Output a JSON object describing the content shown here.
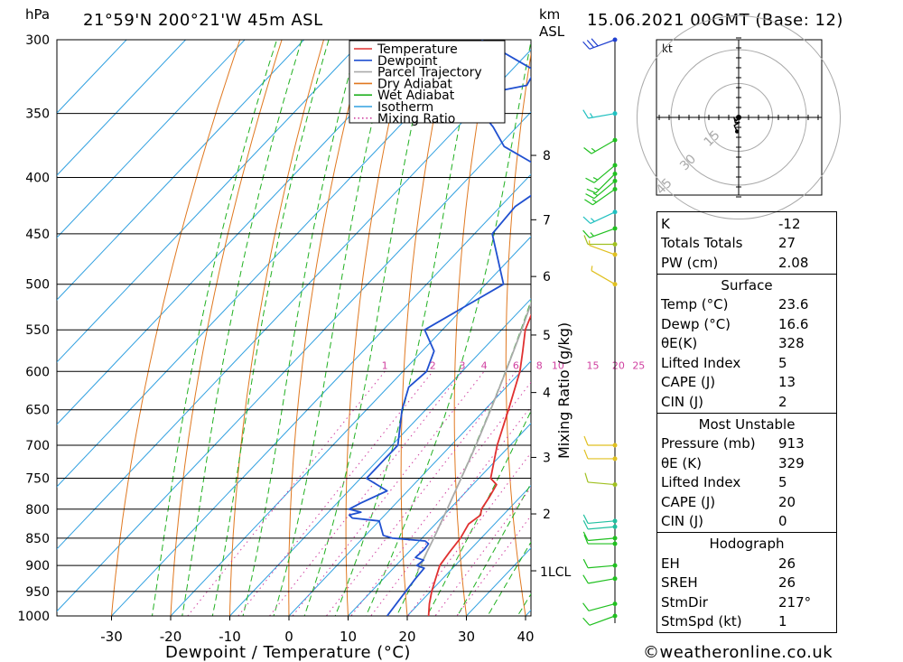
{
  "header": {
    "hpa_label": "hPa",
    "location": "21°59'N  200°21'W  45m  ASL",
    "km_label": "km",
    "asl_label": "ASL",
    "datetime": "15.06.2021  00GMT  (Base: 12)"
  },
  "chart_data": {
    "type": "skew-t",
    "xlabel": "Dewpoint / Temperature (°C)",
    "ylabel_right": "Mixing Ratio (g/kg)",
    "y_unit": "hPa",
    "pressure_levels": [
      300,
      350,
      400,
      450,
      500,
      550,
      600,
      650,
      700,
      750,
      800,
      850,
      900,
      950,
      1000
    ],
    "x_ticks": [
      -30,
      -20,
      -10,
      0,
      10,
      20,
      30,
      40
    ],
    "height_km_ticks": [
      {
        "label": "8",
        "p": 382
      },
      {
        "label": "7",
        "p": 437
      },
      {
        "label": "6",
        "p": 492
      },
      {
        "label": "5",
        "p": 556
      },
      {
        "label": "4",
        "p": 627
      },
      {
        "label": "3",
        "p": 718
      },
      {
        "label": "2",
        "p": 808
      }
    ],
    "lcl": {
      "label": "1LCL",
      "p": 910
    },
    "mixing_ratio_labels": [
      "1",
      "2",
      "3",
      "4",
      "6",
      "8",
      "10",
      "15",
      "20",
      "25"
    ],
    "legend": [
      {
        "name": "Temperature",
        "color": "#e03030",
        "style": "solid"
      },
      {
        "name": "Dewpoint",
        "color": "#2050d0",
        "style": "solid"
      },
      {
        "name": "Parcel Trajectory",
        "color": "#aaaaaa",
        "style": "solid"
      },
      {
        "name": "Dry Adiabat",
        "color": "#e07820",
        "style": "solid"
      },
      {
        "name": "Wet Adiabat",
        "color": "#20b020",
        "style": "solid"
      },
      {
        "name": "Isotherm",
        "color": "#30a0e0",
        "style": "solid"
      },
      {
        "name": "Mixing Ratio",
        "color": "#d040a0",
        "style": "dotted"
      }
    ],
    "series": [
      {
        "name": "Temperature",
        "points": [
          [
            1000,
            23.6
          ],
          [
            975,
            21.8
          ],
          [
            950,
            20.2
          ],
          [
            925,
            18.8
          ],
          [
            900,
            17.4
          ],
          [
            875,
            16.9
          ],
          [
            850,
            16.5
          ],
          [
            825,
            15.6
          ],
          [
            810,
            16.2
          ],
          [
            800,
            15.4
          ],
          [
            780,
            14.8
          ],
          [
            760,
            14.0
          ],
          [
            750,
            12.0
          ],
          [
            700,
            7.8
          ],
          [
            650,
            4.0
          ],
          [
            600,
            -0.2
          ],
          [
            575,
            -3.0
          ],
          [
            550,
            -6.0
          ],
          [
            500,
            -10.2
          ],
          [
            450,
            -14.8
          ],
          [
            425,
            -18.0
          ],
          [
            400,
            -22.5
          ],
          [
            375,
            -27.5
          ],
          [
            350,
            -33.0
          ],
          [
            340,
            -35.0
          ],
          [
            330,
            -37.0
          ],
          [
            320,
            -39.5
          ],
          [
            300,
            -43.5
          ]
        ]
      },
      {
        "name": "Dewpoint",
        "points": [
          [
            1000,
            16.6
          ],
          [
            975,
            16.2
          ],
          [
            950,
            15.8
          ],
          [
            925,
            15.4
          ],
          [
            905,
            15.2
          ],
          [
            900,
            13.5
          ],
          [
            890,
            13.8
          ],
          [
            885,
            12.0
          ],
          [
            870,
            12.2
          ],
          [
            860,
            12.0
          ],
          [
            855,
            11.0
          ],
          [
            850,
            5.0
          ],
          [
            845,
            3.0
          ],
          [
            820,
            0.0
          ],
          [
            815,
            -5.0
          ],
          [
            810,
            -6.0
          ],
          [
            805,
            -4.5
          ],
          [
            800,
            -7.0
          ],
          [
            790,
            -6.0
          ],
          [
            770,
            -3.5
          ],
          [
            750,
            -9.0
          ],
          [
            700,
            -9.0
          ],
          [
            650,
            -14.0
          ],
          [
            620,
            -16.5
          ],
          [
            600,
            -16.0
          ],
          [
            575,
            -18.0
          ],
          [
            550,
            -23.0
          ],
          [
            500,
            -17.0
          ],
          [
            450,
            -27.0
          ],
          [
            425,
            -27.5
          ],
          [
            400,
            -25.0
          ],
          [
            375,
            -39.0
          ],
          [
            360,
            -44.0
          ],
          [
            350,
            -48.0
          ],
          [
            335,
            -50.0
          ],
          [
            330,
            -45.0
          ],
          [
            320,
            -46.0
          ],
          [
            300,
            -60.0
          ]
        ]
      },
      {
        "name": "Parcel Trajectory",
        "points": [
          [
            910,
            14.5
          ],
          [
            850,
            12.0
          ],
          [
            800,
            9.6
          ],
          [
            750,
            7.0
          ],
          [
            700,
            4.2
          ],
          [
            650,
            1.0
          ],
          [
            600,
            -2.6
          ],
          [
            550,
            -6.6
          ],
          [
            500,
            -11.2
          ],
          [
            450,
            -16.6
          ],
          [
            400,
            -23.0
          ],
          [
            350,
            -30.8
          ],
          [
            300,
            -40.5
          ]
        ]
      }
    ]
  },
  "hodograph": {
    "unit": "kt",
    "ring_labels": [
      "15",
      "30",
      "45"
    ],
    "points_kt": [
      [
        0,
        0
      ],
      [
        -0.8,
        -1.2
      ],
      [
        -1.6,
        -0.4
      ],
      [
        -1.2,
        -2.0
      ],
      [
        0.4,
        -1.8
      ],
      [
        -1.6,
        -3.0
      ],
      [
        -0.6,
        -5.2
      ]
    ]
  },
  "stats": {
    "indices": [
      {
        "label": "K",
        "value": "-12"
      },
      {
        "label": "Totals Totals",
        "value": "27"
      },
      {
        "label": "PW (cm)",
        "value": "2.08"
      }
    ],
    "surface_title": "Surface",
    "surface": [
      {
        "label": "Temp (°C)",
        "value": "23.6"
      },
      {
        "label": "Dewp (°C)",
        "value": "16.6"
      },
      {
        "label": "θE(K)",
        "value": "328"
      },
      {
        "label": "Lifted Index",
        "value": "5"
      },
      {
        "label": "CAPE (J)",
        "value": "13"
      },
      {
        "label": "CIN (J)",
        "value": "2"
      }
    ],
    "unstable_title": "Most Unstable",
    "unstable": [
      {
        "label": "Pressure (mb)",
        "value": "913"
      },
      {
        "label": "θE (K)",
        "value": "329"
      },
      {
        "label": "Lifted Index",
        "value": "5"
      },
      {
        "label": "CAPE (J)",
        "value": "20"
      },
      {
        "label": "CIN (J)",
        "value": "0"
      }
    ],
    "hodograph_title": "Hodograph",
    "hodograph": [
      {
        "label": "EH",
        "value": "26"
      },
      {
        "label": "SREH",
        "value": "26"
      },
      {
        "label": "StmDir",
        "value": "217°"
      },
      {
        "label": "StmSpd (kt)",
        "value": "1"
      }
    ]
  },
  "wind_barbs": [
    {
      "p": 300,
      "color": "#2040d0",
      "dir": 250,
      "spd": 30
    },
    {
      "p": 350,
      "color": "#20c0c0",
      "dir": 260,
      "spd": 15
    },
    {
      "p": 370,
      "color": "#20c020",
      "dir": 240,
      "spd": 15
    },
    {
      "p": 390,
      "color": "#20c020",
      "dir": 230,
      "spd": 15
    },
    {
      "p": 397,
      "color": "#20c020",
      "dir": 225,
      "spd": 15
    },
    {
      "p": 403,
      "color": "#20c020",
      "dir": 230,
      "spd": 15
    },
    {
      "p": 410,
      "color": "#20c020",
      "dir": 235,
      "spd": 15
    },
    {
      "p": 430,
      "color": "#20c0c0",
      "dir": 245,
      "spd": 15
    },
    {
      "p": 445,
      "color": "#20c020",
      "dir": 250,
      "spd": 15
    },
    {
      "p": 460,
      "color": "#a0c020",
      "dir": 270,
      "spd": 10
    },
    {
      "p": 470,
      "color": "#e0c020",
      "dir": 290,
      "spd": 5
    },
    {
      "p": 500,
      "color": "#e0c020",
      "dir": 300,
      "spd": 5
    },
    {
      "p": 700,
      "color": "#e0c020",
      "dir": 270,
      "spd": 10
    },
    {
      "p": 720,
      "color": "#e0c020",
      "dir": 270,
      "spd": 10
    },
    {
      "p": 760,
      "color": "#a0c020",
      "dir": 275,
      "spd": 10
    },
    {
      "p": 820,
      "color": "#20c0a0",
      "dir": 265,
      "spd": 10
    },
    {
      "p": 830,
      "color": "#20c0a0",
      "dir": 265,
      "spd": 10
    },
    {
      "p": 850,
      "color": "#20c020",
      "dir": 265,
      "spd": 10
    },
    {
      "p": 860,
      "color": "#20c020",
      "dir": 270,
      "spd": 10
    },
    {
      "p": 900,
      "color": "#20c020",
      "dir": 265,
      "spd": 10
    },
    {
      "p": 925,
      "color": "#20c020",
      "dir": 260,
      "spd": 10
    },
    {
      "p": 975,
      "color": "#20c020",
      "dir": 255,
      "spd": 10
    },
    {
      "p": 1000,
      "color": "#20c020",
      "dir": 250,
      "spd": 10
    }
  ],
  "footer": {
    "copyright": "©weatheronline.co.uk"
  }
}
